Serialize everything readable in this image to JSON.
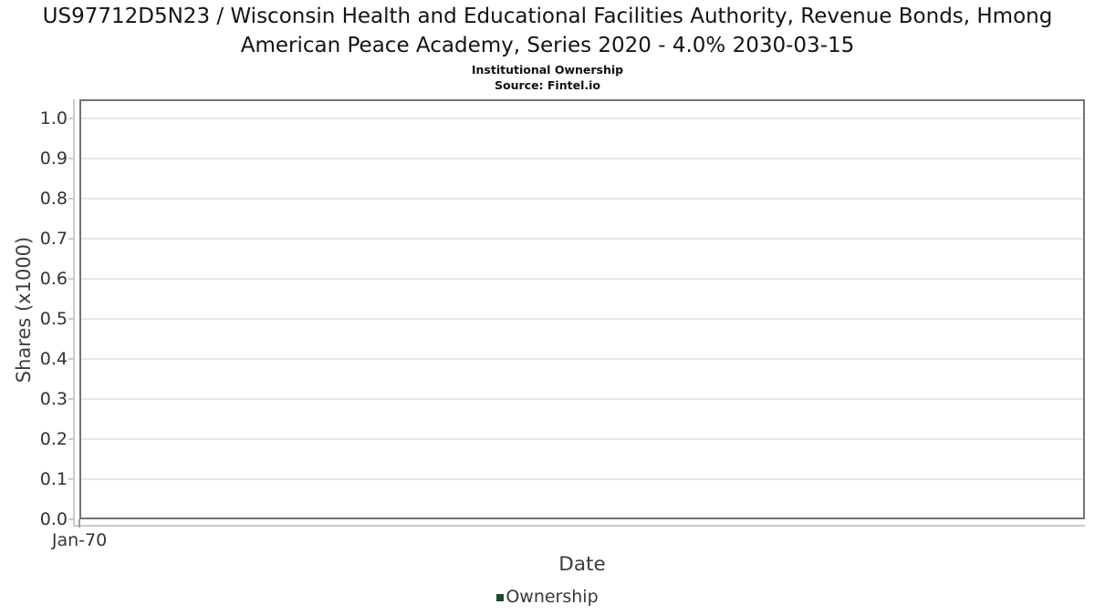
{
  "chart_data": {
    "type": "line",
    "title": "US97712D5N23 / Wisconsin Health and Educational Facilities Authority, Revenue Bonds, Hmong American Peace Academy, Series 2020 - 4.0% 2030-03-15",
    "subtitle": "Institutional Ownership",
    "source_note": "Source: Fintel.io",
    "xlabel": "Date",
    "ylabel": "Shares (x1000)",
    "x_tick_labels": [
      "Jan-70"
    ],
    "y_tick_labels": [
      "0.0",
      "0.1",
      "0.2",
      "0.3",
      "0.4",
      "0.5",
      "0.6",
      "0.7",
      "0.8",
      "0.9",
      "1.0"
    ],
    "ylim": [
      0.0,
      1.05
    ],
    "grid": "horizontal",
    "legend": {
      "position": "bottom-center",
      "entries": [
        {
          "label": "Ownership",
          "marker_color": "#1e4c28"
        }
      ]
    },
    "series": [
      {
        "name": "Ownership",
        "color": "#1e4c28",
        "points": []
      }
    ]
  },
  "colors": {
    "frame": "#747474",
    "gridline": "#e7e7e7",
    "axis_line": "#cbcbcb",
    "tick_text": "#333333",
    "axis_title_text": "#3d3d3d",
    "title_text": "#141414",
    "legend_marker": "#1e4c28",
    "background": "#ffffff"
  }
}
